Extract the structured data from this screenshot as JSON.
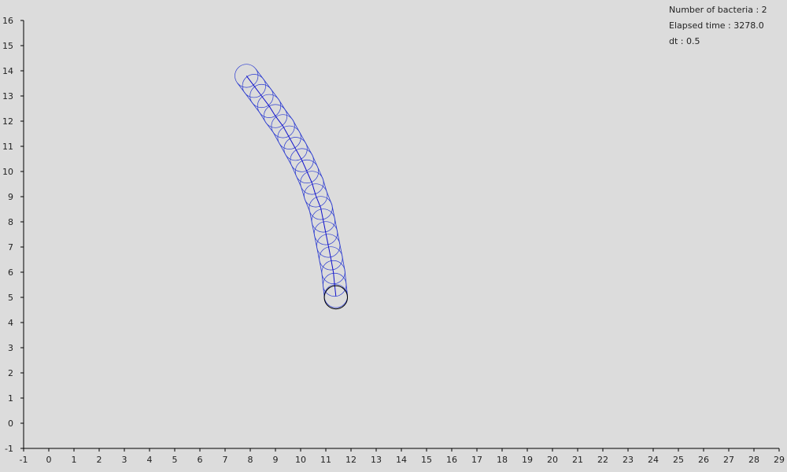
{
  "info": {
    "bacteria_count": "Number of bacteria : 2",
    "elapsed_time": "Elapsed time : 3278.0",
    "dt": "dt : 0.5"
  },
  "colors": {
    "background": "#dcdcdc",
    "axis": "#000000",
    "bacterium_body": "#2a3ad0",
    "bacterium_spine": "#1010cc",
    "new_cell": "#000000"
  },
  "chart_data": {
    "type": "scatter",
    "xlim": [
      -1,
      29
    ],
    "ylim": [
      -1,
      16
    ],
    "x_ticks": [
      "-1",
      "0",
      "1",
      "2",
      "3",
      "4",
      "5",
      "6",
      "7",
      "8",
      "9",
      "10",
      "11",
      "12",
      "13",
      "14",
      "15",
      "16",
      "17",
      "18",
      "19",
      "20",
      "21",
      "22",
      "23",
      "24",
      "25",
      "26",
      "27",
      "28",
      "29"
    ],
    "y_ticks": [
      "-1",
      "0",
      "1",
      "2",
      "3",
      "4",
      "5",
      "6",
      "7",
      "8",
      "9",
      "10",
      "11",
      "12",
      "13",
      "14",
      "15",
      "16"
    ],
    "grid": false,
    "bacteria": [
      {
        "id": "bacterium-1",
        "radius": 0.46,
        "segments": [
          [
            7.85,
            13.8
          ],
          [
            8.15,
            13.4
          ],
          [
            8.45,
            13.0
          ],
          [
            8.75,
            12.6
          ],
          [
            9.0,
            12.2
          ],
          [
            9.3,
            11.8
          ],
          [
            9.55,
            11.35
          ],
          [
            9.8,
            10.9
          ],
          [
            10.05,
            10.45
          ],
          [
            10.25,
            10.0
          ],
          [
            10.45,
            9.55
          ],
          [
            10.6,
            9.05
          ],
          [
            10.8,
            8.55
          ],
          [
            10.9,
            8.05
          ],
          [
            11.0,
            7.55
          ],
          [
            11.1,
            7.05
          ],
          [
            11.2,
            6.55
          ],
          [
            11.3,
            6.0
          ],
          [
            11.35,
            5.5
          ],
          [
            11.4,
            5.05
          ]
        ]
      },
      {
        "id": "bacterium-2",
        "radius": 0.46,
        "segments": [
          [
            11.4,
            5.0
          ]
        ]
      }
    ]
  }
}
